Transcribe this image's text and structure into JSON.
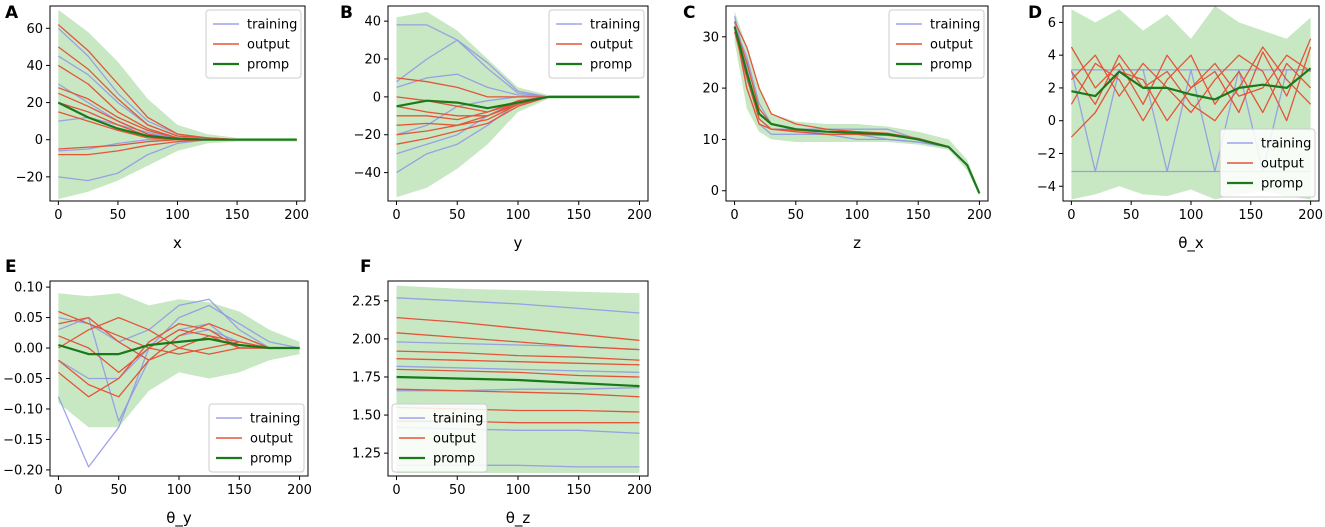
{
  "figure_title": "",
  "colors": {
    "training": "#8f94e6",
    "training_fill": "#aeb2f0",
    "output": "#e3553a",
    "promp": "#1a7a1a",
    "band": "#c8e8c4",
    "axes": "#000000"
  },
  "legend": {
    "entries": [
      {
        "label": "training",
        "series": "training"
      },
      {
        "label": "output",
        "series": "output"
      },
      {
        "label": "promp",
        "series": "promp"
      }
    ]
  },
  "chart_data": [
    {
      "id": "A",
      "panel_label": "A",
      "type": "line",
      "title": "",
      "xlabel": "x",
      "ylabel": "",
      "xlim": [
        -7,
        207
      ],
      "ylim": [
        -33,
        72
      ],
      "xticks": [
        0,
        50,
        100,
        150,
        200
      ],
      "yticks": [
        -20,
        0,
        20,
        40,
        60
      ],
      "xtick_labels": [
        "0",
        "50",
        "100",
        "150",
        "200"
      ],
      "ytick_labels": [
        "−20",
        "0",
        "20",
        "40",
        "60"
      ],
      "legend_loc": "upper right",
      "x": [
        0,
        25,
        50,
        75,
        100,
        125,
        150,
        175,
        200
      ],
      "band": {
        "upper": [
          70,
          58,
          42,
          22,
          8,
          3,
          1,
          1,
          1
        ],
        "lower": [
          -32,
          -28,
          -22,
          -14,
          -6,
          -2,
          -1,
          -1,
          -1
        ]
      },
      "promp": [
        20,
        12,
        6,
        2,
        0.5,
        0,
        0,
        0,
        0
      ],
      "training": [
        [
          60,
          45,
          25,
          10,
          3,
          1,
          0,
          0,
          0
        ],
        [
          45,
          35,
          20,
          8,
          2,
          0,
          0,
          0,
          0
        ],
        [
          10,
          12,
          8,
          4,
          1,
          0,
          0,
          0,
          0
        ],
        [
          -6,
          -5,
          -2,
          0,
          0,
          0,
          0,
          0,
          0
        ],
        [
          -20,
          -22,
          -18,
          -8,
          -2,
          0,
          0,
          0,
          0
        ],
        [
          30,
          20,
          10,
          3,
          1,
          0,
          0,
          0,
          0
        ]
      ],
      "output": [
        [
          62,
          48,
          30,
          12,
          3,
          1,
          0,
          0,
          0
        ],
        [
          50,
          38,
          22,
          8,
          2,
          1,
          0,
          0,
          0
        ],
        [
          40,
          30,
          15,
          6,
          1,
          0,
          0,
          0,
          0
        ],
        [
          28,
          22,
          12,
          5,
          1,
          0,
          0,
          0,
          0
        ],
        [
          25,
          18,
          10,
          3,
          0,
          0,
          0,
          0,
          0
        ],
        [
          20,
          15,
          8,
          2,
          0,
          0,
          0,
          0,
          0
        ],
        [
          15,
          10,
          5,
          1,
          0,
          0,
          0,
          0,
          0
        ],
        [
          -5,
          -4,
          -3,
          -1,
          0,
          0,
          0,
          0,
          0
        ],
        [
          -8,
          -8,
          -6,
          -3,
          -1,
          0,
          0,
          0,
          0
        ]
      ]
    },
    {
      "id": "B",
      "panel_label": "B",
      "type": "line",
      "title": "",
      "xlabel": "y",
      "ylabel": "",
      "xlim": [
        -7,
        207
      ],
      "ylim": [
        -55,
        48
      ],
      "xticks": [
        0,
        50,
        100,
        150,
        200
      ],
      "yticks": [
        -40,
        -20,
        0,
        20,
        40
      ],
      "xtick_labels": [
        "0",
        "50",
        "100",
        "150",
        "200"
      ],
      "ytick_labels": [
        "−40",
        "−20",
        "0",
        "20",
        "40"
      ],
      "legend_loc": "upper right",
      "x": [
        0,
        25,
        50,
        75,
        100,
        125,
        150,
        175,
        200
      ],
      "band": {
        "upper": [
          42,
          45,
          35,
          20,
          5,
          1,
          1,
          1,
          1
        ],
        "lower": [
          -53,
          -48,
          -38,
          -25,
          -8,
          -1,
          -1,
          -1,
          -1
        ]
      },
      "promp": [
        -5,
        -2,
        -3,
        -6,
        -3,
        0,
        0,
        0,
        0
      ],
      "training": [
        [
          38,
          38,
          30,
          15,
          2,
          0,
          0,
          0,
          0
        ],
        [
          8,
          20,
          30,
          18,
          3,
          0,
          0,
          0,
          0
        ],
        [
          5,
          10,
          12,
          5,
          1,
          0,
          0,
          0,
          0
        ],
        [
          -20,
          -15,
          -5,
          -2,
          0,
          0,
          0,
          0,
          0
        ],
        [
          -30,
          -25,
          -20,
          -10,
          -2,
          0,
          0,
          0,
          0
        ],
        [
          -40,
          -30,
          -25,
          -15,
          -3,
          0,
          0,
          0,
          0
        ]
      ],
      "output": [
        [
          10,
          8,
          5,
          0,
          0,
          0,
          0,
          0,
          0
        ],
        [
          0,
          -2,
          -5,
          -8,
          -3,
          0,
          0,
          0,
          0
        ],
        [
          -5,
          -8,
          -10,
          -10,
          -4,
          0,
          0,
          0,
          0
        ],
        [
          -10,
          -10,
          -12,
          -8,
          -2,
          0,
          0,
          0,
          0
        ],
        [
          -15,
          -14,
          -15,
          -10,
          -3,
          0,
          0,
          0,
          0
        ],
        [
          -20,
          -18,
          -15,
          -12,
          -4,
          0,
          0,
          0,
          0
        ],
        [
          -25,
          -22,
          -18,
          -14,
          -5,
          0,
          0,
          0,
          0
        ]
      ]
    },
    {
      "id": "C",
      "panel_label": "C",
      "type": "line",
      "title": "",
      "xlabel": "z",
      "ylabel": "",
      "xlim": [
        -7,
        207
      ],
      "ylim": [
        -2,
        36
      ],
      "xticks": [
        0,
        50,
        100,
        150,
        200
      ],
      "yticks": [
        0,
        10,
        20,
        30
      ],
      "xtick_labels": [
        "0",
        "50",
        "100",
        "150",
        "200"
      ],
      "ytick_labels": [
        "0",
        "10",
        "20",
        "30"
      ],
      "legend_loc": "upper right",
      "x": [
        0,
        10,
        20,
        30,
        50,
        75,
        100,
        125,
        150,
        175,
        190,
        200
      ],
      "band": {
        "upper": [
          35,
          28,
          20,
          15,
          13.5,
          13,
          13,
          12.5,
          11.5,
          10,
          6,
          0
        ],
        "lower": [
          29,
          16,
          11.5,
          10,
          9.5,
          9.5,
          9.5,
          9.5,
          9,
          8,
          4,
          -1
        ]
      },
      "promp": [
        32,
        23,
        15,
        13,
        12,
        11.5,
        11.3,
        11,
        10,
        8.5,
        5,
        -0.5
      ],
      "training": [
        [
          34,
          24,
          14,
          12,
          12,
          12,
          12,
          12,
          10,
          8.5,
          5,
          -0.5
        ],
        [
          33,
          20,
          13,
          11,
          11,
          11,
          11,
          10,
          9.5,
          8.5,
          5,
          -0.5
        ],
        [
          32,
          26,
          17,
          13,
          12,
          11,
          10,
          10,
          9.5,
          8.5,
          5,
          -0.5
        ]
      ],
      "output": [
        [
          33,
          28,
          20,
          15,
          13,
          12,
          11.5,
          11,
          10,
          8.5,
          5,
          -0.5
        ],
        [
          32,
          25,
          16,
          13,
          12,
          11.5,
          11.2,
          11,
          10,
          8.5,
          5,
          -0.5
        ],
        [
          31,
          22,
          14,
          12,
          11.5,
          11,
          11,
          10.8,
          10,
          8.5,
          5,
          -0.5
        ],
        [
          32,
          20,
          13,
          12,
          11.8,
          11.5,
          11.5,
          11.2,
          10.2,
          8.6,
          5,
          -0.5
        ]
      ]
    },
    {
      "id": "D",
      "panel_label": "D",
      "type": "line",
      "title": "",
      "xlabel": "θ_x",
      "ylabel": "",
      "xlim": [
        -7,
        207
      ],
      "ylim": [
        -4.9,
        7.0
      ],
      "xticks": [
        0,
        50,
        100,
        150,
        200
      ],
      "yticks": [
        -4,
        -2,
        0,
        2,
        4,
        6
      ],
      "xtick_labels": [
        "0",
        "50",
        "100",
        "150",
        "200"
      ],
      "ytick_labels": [
        "−4",
        "−2",
        "0",
        "2",
        "4",
        "6"
      ],
      "legend_loc": "lower right",
      "x": [
        0,
        20,
        40,
        60,
        80,
        100,
        120,
        140,
        160,
        180,
        200
      ],
      "band": {
        "upper": [
          6.8,
          6.0,
          6.8,
          5.5,
          6.5,
          5.0,
          7.0,
          6.0,
          5.5,
          5.0,
          6.3
        ],
        "lower": [
          -4.8,
          -4.5,
          -4.0,
          -4.5,
          -4.6,
          -4.2,
          -4.8,
          -4.5,
          -4.3,
          -4.6,
          -4.8
        ]
      },
      "promp": [
        1.8,
        1.5,
        3.0,
        2.0,
        2.0,
        1.6,
        1.3,
        2.0,
        2.2,
        2.0,
        3.2
      ],
      "training": [
        [
          3.1,
          3.1,
          3.1,
          3.1,
          3.1,
          3.1,
          3.1,
          3.1,
          3.1,
          3.1,
          3.1
        ],
        [
          -3.1,
          -3.1,
          -3.1,
          -3.1,
          -3.1,
          -3.1,
          -3.1,
          -3.1,
          -3.1,
          -3.1,
          -3.1
        ],
        [
          3.1,
          -3.1,
          3.1,
          3.1,
          -3.1,
          3.1,
          -3.1,
          3.1,
          -3.1,
          3.1,
          3.1
        ]
      ],
      "output": [
        [
          4.5,
          2.0,
          3.5,
          1.0,
          4.0,
          2.0,
          3.0,
          0.5,
          4.2,
          1.5,
          5.0
        ],
        [
          1.0,
          3.5,
          2.5,
          0.0,
          2.5,
          4.0,
          1.0,
          3.0,
          0.5,
          3.5,
          2.0
        ],
        [
          -1.0,
          0.5,
          3.0,
          2.5,
          0.0,
          2.0,
          3.5,
          1.5,
          2.0,
          4.0,
          3.0
        ],
        [
          2.5,
          4.0,
          1.5,
          3.5,
          2.0,
          0.5,
          2.5,
          4.0,
          3.0,
          0.0,
          4.5
        ],
        [
          3.0,
          1.0,
          4.0,
          2.0,
          3.0,
          1.0,
          0.0,
          2.0,
          4.5,
          2.5,
          1.0
        ]
      ]
    },
    {
      "id": "E",
      "panel_label": "E",
      "type": "line",
      "title": "",
      "xlabel": "θ_y",
      "ylabel": "",
      "xlim": [
        -7,
        207
      ],
      "ylim": [
        -0.21,
        0.11
      ],
      "xticks": [
        0,
        50,
        100,
        150,
        200
      ],
      "yticks": [
        -0.2,
        -0.15,
        -0.1,
        -0.05,
        0.0,
        0.05,
        0.1
      ],
      "xtick_labels": [
        "0",
        "50",
        "100",
        "150",
        "200"
      ],
      "ytick_labels": [
        "−0.20",
        "−0.15",
        "−0.10",
        "−0.05",
        "0.00",
        "0.05",
        "0.10"
      ],
      "legend_loc": "lower right",
      "x": [
        0,
        25,
        50,
        75,
        100,
        125,
        150,
        175,
        200
      ],
      "band": {
        "upper": [
          0.09,
          0.085,
          0.09,
          0.07,
          0.08,
          0.075,
          0.06,
          0.03,
          0.01
        ],
        "lower": [
          -0.09,
          -0.13,
          -0.13,
          -0.07,
          -0.04,
          -0.05,
          -0.04,
          -0.02,
          -0.01
        ]
      },
      "promp": [
        0.005,
        -0.01,
        -0.01,
        0.005,
        0.01,
        0.015,
        0.005,
        0.0,
        0.0
      ],
      "training": [
        [
          -0.08,
          -0.195,
          -0.13,
          0.0,
          0.03,
          0.04,
          0.0,
          0.0,
          0.0
        ],
        [
          0.05,
          0.04,
          0.01,
          0.03,
          0.07,
          0.08,
          0.03,
          0.0,
          0.0
        ],
        [
          0.03,
          0.05,
          -0.12,
          -0.02,
          0.02,
          0.03,
          0.01,
          0.0,
          0.0
        ],
        [
          -0.02,
          -0.05,
          -0.05,
          0.0,
          0.05,
          0.07,
          0.04,
          0.01,
          0.0
        ]
      ],
      "output": [
        [
          0.06,
          0.04,
          0.02,
          0.0,
          -0.01,
          0.0,
          0.01,
          0.0,
          0.0
        ],
        [
          0.04,
          0.05,
          0.01,
          -0.02,
          0.0,
          0.02,
          0.01,
          0.0,
          0.0
        ],
        [
          0.02,
          0.0,
          -0.04,
          0.0,
          0.03,
          0.02,
          0.0,
          0.0,
          0.0
        ],
        [
          -0.04,
          -0.08,
          -0.05,
          0.01,
          0.04,
          0.03,
          0.0,
          0.0,
          0.0
        ],
        [
          -0.02,
          -0.06,
          -0.08,
          -0.02,
          0.02,
          0.04,
          0.02,
          0.0,
          0.0
        ],
        [
          0.0,
          0.03,
          0.05,
          0.03,
          0.0,
          -0.01,
          0.0,
          0.0,
          0.0
        ]
      ]
    },
    {
      "id": "F",
      "panel_label": "F",
      "type": "line",
      "title": "",
      "xlabel": "θ_z",
      "ylabel": "",
      "xlim": [
        -7,
        207
      ],
      "ylim": [
        1.1,
        2.38
      ],
      "xticks": [
        0,
        50,
        100,
        150,
        200
      ],
      "yticks": [
        1.25,
        1.5,
        1.75,
        2.0,
        2.25
      ],
      "xtick_labels": [
        "0",
        "50",
        "100",
        "150",
        "200"
      ],
      "ytick_labels": [
        "1.25",
        "1.50",
        "1.75",
        "2.00",
        "2.25"
      ],
      "legend_loc": "lower left",
      "x": [
        0,
        50,
        100,
        150,
        200
      ],
      "band": {
        "upper": [
          2.35,
          2.33,
          2.32,
          2.31,
          2.3
        ],
        "lower": [
          1.12,
          1.12,
          1.12,
          1.12,
          1.12
        ]
      },
      "promp": [
        1.75,
        1.74,
        1.73,
        1.71,
        1.69
      ],
      "training": [
        [
          2.27,
          2.25,
          2.23,
          2.2,
          2.17
        ],
        [
          1.98,
          1.97,
          1.96,
          1.95,
          1.93
        ],
        [
          1.82,
          1.81,
          1.8,
          1.79,
          1.78
        ],
        [
          1.66,
          1.66,
          1.67,
          1.67,
          1.68
        ],
        [
          1.42,
          1.41,
          1.4,
          1.4,
          1.38
        ],
        [
          1.17,
          1.17,
          1.17,
          1.16,
          1.16
        ]
      ],
      "output": [
        [
          2.14,
          2.11,
          2.07,
          2.03,
          1.99
        ],
        [
          2.04,
          2.01,
          1.98,
          1.95,
          1.93
        ],
        [
          1.92,
          1.91,
          1.89,
          1.88,
          1.86
        ],
        [
          1.87,
          1.86,
          1.85,
          1.84,
          1.83
        ],
        [
          1.8,
          1.79,
          1.78,
          1.76,
          1.75
        ],
        [
          1.67,
          1.66,
          1.65,
          1.64,
          1.62
        ],
        [
          1.55,
          1.54,
          1.53,
          1.53,
          1.52
        ],
        [
          1.46,
          1.46,
          1.45,
          1.45,
          1.45
        ]
      ]
    }
  ]
}
